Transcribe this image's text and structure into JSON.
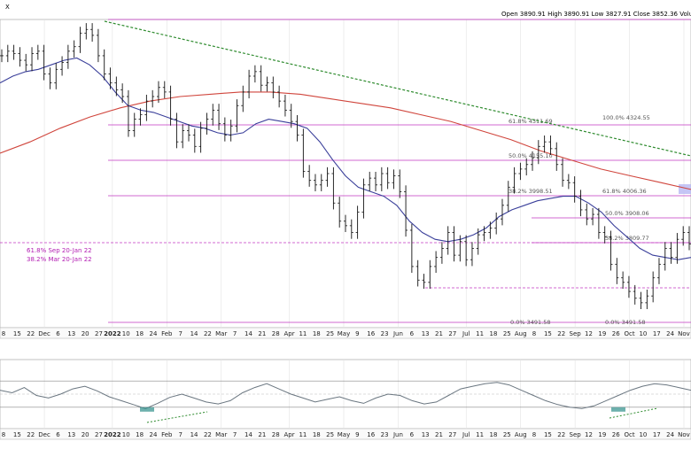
{
  "header": {
    "ticker_fragment": "X",
    "ohlc": "Open 3890.91  High 3890.91  Low 3827.91  Close 3852.36  Volu"
  },
  "colors": {
    "price": "#111111",
    "ma_blue": "#3a3f9a",
    "ma_red": "#d0453c",
    "fib": "#c237c2",
    "trend": "#2e8b2e",
    "rsi": "#6a7680",
    "rsi_fill": "#2f8f8a",
    "highlight": "#b6b6f2"
  },
  "annotations": {
    "fib_note_1": "61.8% Sep 20-Jan 22",
    "fib_note_2": "38.2% Mar 20-Jan 22"
  },
  "chart_data": [
    {
      "type": "line",
      "title": "",
      "y_axis": "not shown",
      "x_tick_labels": [
        "8",
        "15",
        "22",
        "Dec",
        "6",
        "13",
        "20",
        "27",
        "2022",
        "10",
        "18",
        "24",
        "Feb",
        "7",
        "14",
        "22",
        "Mar",
        "7",
        "14",
        "21",
        "28",
        "Apr",
        "11",
        "18",
        "25",
        "May",
        "9",
        "16",
        "23",
        "Jun",
        "6",
        "13",
        "21",
        "27",
        "Jul",
        "11",
        "18",
        "25",
        "Aug",
        "8",
        "15",
        "22",
        "Sep",
        "12",
        "19",
        "26",
        "Oct",
        "10",
        "17",
        "24",
        "Nov"
      ],
      "series": [
        {
          "name": "",
          "style": "ohlc bars",
          "values": [
            4680,
            4700,
            4690,
            4660,
            4640,
            4690,
            4700,
            4600,
            4560,
            4620,
            4650,
            4700,
            4720,
            4780,
            4796,
            4770,
            4680,
            4600,
            4560,
            4530,
            4500,
            4350,
            4400,
            4420,
            4480,
            4500,
            4540,
            4520,
            4400,
            4300,
            4350,
            4330,
            4280,
            4360,
            4400,
            4440,
            4380,
            4330,
            4370,
            4460,
            4520,
            4590,
            4610,
            4550,
            4560,
            4520,
            4480,
            4440,
            4390,
            4330,
            4170,
            4130,
            4110,
            4130,
            4160,
            4030,
            3950,
            3930,
            3900,
            3990,
            4110,
            4140,
            4110,
            4160,
            4120,
            4150,
            4080,
            3910,
            3750,
            3690,
            3680,
            3750,
            3790,
            3830,
            3900,
            3800,
            3860,
            3780,
            3830,
            3890,
            3900,
            3920,
            3960,
            4020,
            4100,
            4160,
            4180,
            4200,
            4230,
            4280,
            4300,
            4270,
            4200,
            4130,
            4120,
            4060,
            4000,
            3960,
            3980,
            3900,
            3880,
            3760,
            3700,
            3680,
            3640,
            3610,
            3590,
            3620,
            3700,
            3760,
            3830,
            3790,
            3870,
            3900,
            3850
          ]
        },
        {
          "name": "",
          "style": "moving average (blue)",
          "values": [
            4560,
            4590,
            4610,
            4620,
            4640,
            4660,
            4670,
            4640,
            4590,
            4520,
            4460,
            4440,
            4430,
            4410,
            4390,
            4370,
            4360,
            4340,
            4330,
            4340,
            4380,
            4400,
            4390,
            4380,
            4360,
            4300,
            4220,
            4150,
            4100,
            4080,
            4060,
            4020,
            3950,
            3900,
            3870,
            3860,
            3870,
            3890,
            3920,
            3970,
            4000,
            4020,
            4040,
            4050,
            4060,
            4060,
            4030,
            3990,
            3930,
            3880,
            3830,
            3800,
            3790,
            3780,
            3790
          ]
        },
        {
          "name": "",
          "style": "moving average (red)",
          "values": [
            4250,
            4300,
            4360,
            4410,
            4450,
            4480,
            4500,
            4510,
            4520,
            4520,
            4510,
            4490,
            4470,
            4450,
            4420,
            4390,
            4350,
            4310,
            4260,
            4220,
            4180,
            4150,
            4120,
            4090
          ]
        }
      ],
      "fibonacci_levels": [
        "100.0% 4324.55",
        "61.8% 4006.36",
        "50.0% 3908.06",
        "38.2% 3809.77",
        "0.0% 3491.58",
        "61.8% 4311.69",
        "50.0% 4155.10",
        "38.2% 3998.51",
        "0.0% 3491.58"
      ]
    },
    {
      "type": "line",
      "title": "",
      "series": [
        {
          "name": "",
          "style": "RSI oscillator",
          "values": [
            56,
            52,
            60,
            48,
            44,
            50,
            58,
            62,
            55,
            46,
            40,
            34,
            28,
            36,
            45,
            50,
            44,
            38,
            35,
            40,
            52,
            60,
            66,
            58,
            50,
            44,
            38,
            42,
            46,
            40,
            36,
            44,
            50,
            48,
            40,
            35,
            38,
            48,
            58,
            62,
            66,
            68,
            64,
            56,
            48,
            40,
            34,
            30,
            28,
            32,
            40,
            48,
            56,
            62,
            66,
            64,
            60,
            56
          ]
        }
      ]
    }
  ]
}
